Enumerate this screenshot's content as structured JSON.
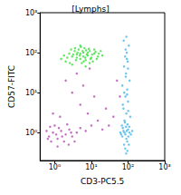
{
  "chart_data": {
    "type": "scatter",
    "title": "[Lymphs]",
    "x_label": "CD3-PC5.5",
    "y_label": "CD57-FITC",
    "log": true,
    "grid": false,
    "xlim": [
      0.4,
      1000
    ],
    "ylim": [
      0.2,
      1000
    ],
    "xticks": [
      {
        "value": 1,
        "label": "10⁰"
      },
      {
        "value": 10,
        "label": "10¹"
      },
      {
        "value": 100,
        "label": "10²"
      },
      {
        "value": 1000,
        "label": "10³"
      }
    ],
    "yticks": [
      {
        "value": 1,
        "label": "10⁰"
      },
      {
        "value": 10,
        "label": "10¹"
      },
      {
        "value": 100,
        "label": "10²"
      },
      {
        "value": 1000,
        "label": "10³"
      }
    ],
    "series": [
      {
        "color": "#b040b0",
        "marker": "circle",
        "points": [
          [
            0.7,
            0.8
          ],
          [
            0.9,
            1.0
          ],
          [
            1.2,
            0.7
          ],
          [
            1.5,
            1.1
          ],
          [
            2,
            0.9
          ],
          [
            2.5,
            1.2
          ],
          [
            1,
            1.5
          ],
          [
            0.8,
            0.6
          ],
          [
            3,
            0.8
          ],
          [
            1.8,
            0.6
          ],
          [
            1.3,
            1.3
          ],
          [
            0.6,
            1.1
          ],
          [
            4,
            1.0
          ],
          [
            2.2,
            1.6
          ],
          [
            1.1,
            0.9
          ],
          [
            0.75,
            1.4
          ],
          [
            5,
            1.3
          ],
          [
            3.5,
            0.6
          ],
          [
            1.6,
            0.8
          ],
          [
            2.8,
            1.0
          ],
          [
            7,
            1.1
          ],
          [
            10,
            1.5
          ],
          [
            15,
            2
          ],
          [
            20,
            1.2
          ],
          [
            30,
            1.5
          ],
          [
            8,
            3
          ],
          [
            5,
            5
          ],
          [
            3,
            10
          ],
          [
            2,
            20
          ],
          [
            6,
            15
          ],
          [
            12,
            8
          ],
          [
            25,
            4
          ],
          [
            40,
            2.5
          ],
          [
            1.4,
            2.5
          ],
          [
            0.9,
            3
          ],
          [
            50,
            20
          ],
          [
            4,
            30
          ],
          [
            9,
            40
          ],
          [
            1.2,
            0.45
          ],
          [
            2.4,
            0.5
          ],
          [
            0.65,
            0.7
          ],
          [
            60,
            8
          ]
        ]
      },
      {
        "color": "#33dd33",
        "marker": "circle",
        "points": [
          [
            2,
            60
          ],
          [
            3,
            80
          ],
          [
            4,
            90
          ],
          [
            5,
            70
          ],
          [
            6,
            100
          ],
          [
            8,
            85
          ],
          [
            10,
            75
          ],
          [
            12,
            95
          ],
          [
            3.5,
            110
          ],
          [
            4.5,
            120
          ],
          [
            2.5,
            95
          ],
          [
            7,
            65
          ],
          [
            9,
            110
          ],
          [
            15,
            80
          ],
          [
            5.5,
            55
          ],
          [
            3,
            50
          ],
          [
            6.5,
            130
          ],
          [
            11,
            60
          ],
          [
            4,
            75
          ],
          [
            5,
            95
          ],
          [
            7.5,
            90
          ],
          [
            2.2,
            75
          ],
          [
            1.8,
            85
          ],
          [
            13,
            105
          ],
          [
            8.5,
            125
          ],
          [
            6,
            80
          ],
          [
            3.8,
            65
          ],
          [
            4.2,
            100
          ],
          [
            9.5,
            70
          ],
          [
            16,
            95
          ],
          [
            20,
            85
          ],
          [
            1.5,
            70
          ],
          [
            5.2,
            140
          ],
          [
            7,
            45
          ],
          [
            2.8,
            120
          ],
          [
            10.5,
            90
          ],
          [
            12,
            120
          ],
          [
            3.2,
            90
          ],
          [
            5.8,
            110
          ],
          [
            6.8,
            75
          ],
          [
            4.8,
            85
          ],
          [
            8,
            100
          ],
          [
            14,
            70
          ],
          [
            2.6,
            55
          ],
          [
            9,
            55
          ],
          [
            5,
            150
          ],
          [
            18,
            110
          ],
          [
            3.6,
            130
          ],
          [
            7.2,
            115
          ],
          [
            6.2,
            60
          ]
        ]
      },
      {
        "color": "#3ab0e8",
        "marker": "circle",
        "points": [
          [
            70,
            0.8
          ],
          [
            80,
            1.0
          ],
          [
            90,
            0.7
          ],
          [
            100,
            1.2
          ],
          [
            85,
            0.9
          ],
          [
            75,
            1.1
          ],
          [
            95,
            0.6
          ],
          [
            110,
            1.0
          ],
          [
            65,
            0.9
          ],
          [
            88,
            1.4
          ],
          [
            78,
            0.5
          ],
          [
            102,
            0.8
          ],
          [
            92,
            1.1
          ],
          [
            72,
            1.3
          ],
          [
            120,
            0.9
          ],
          [
            84,
            0.4
          ],
          [
            97,
            1.6
          ],
          [
            68,
            1.5
          ],
          [
            105,
            0.5
          ],
          [
            80,
            2
          ],
          [
            90,
            3
          ],
          [
            75,
            4
          ],
          [
            100,
            6
          ],
          [
            85,
            8
          ],
          [
            95,
            12
          ],
          [
            70,
            15
          ],
          [
            110,
            20
          ],
          [
            88,
            30
          ],
          [
            78,
            45
          ],
          [
            98,
            60
          ],
          [
            83,
            80
          ],
          [
            92,
            100
          ],
          [
            105,
            150
          ],
          [
            76,
            200
          ],
          [
            90,
            250
          ],
          [
            100,
            40
          ],
          [
            87,
            25
          ],
          [
            94,
            9
          ],
          [
            72,
            5
          ],
          [
            115,
            2.5
          ],
          [
            82,
            1.8
          ],
          [
            96,
            0.35
          ],
          [
            89,
            0.3
          ],
          [
            108,
            1.4
          ],
          [
            62,
            1.0
          ],
          [
            130,
            1.1
          ],
          [
            86,
            120
          ],
          [
            79,
            10
          ],
          [
            101,
            3.5
          ],
          [
            93,
            70
          ]
        ]
      }
    ]
  }
}
